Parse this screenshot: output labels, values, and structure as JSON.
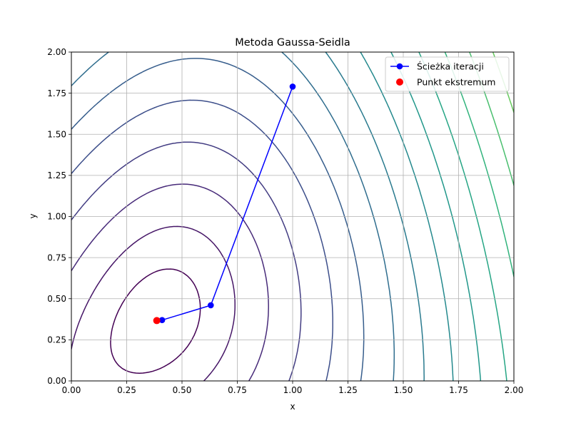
{
  "chart_data": {
    "type": "line",
    "title": "Metoda Gaussa-Seidla",
    "xlabel": "x",
    "ylabel": "y",
    "xlim": [
      0.0,
      2.0
    ],
    "ylim": [
      0.0,
      2.0
    ],
    "xticks": [
      "0.00",
      "0.25",
      "0.50",
      "0.75",
      "1.00",
      "1.25",
      "1.50",
      "1.75",
      "2.00"
    ],
    "yticks": [
      "0.00",
      "0.25",
      "0.50",
      "0.75",
      "1.00",
      "1.25",
      "1.50",
      "1.75",
      "2.00"
    ],
    "grid": true,
    "legend_position": "top-right",
    "contour": {
      "type": "contour",
      "colormap": "viridis",
      "center": [
        0.386,
        0.367
      ]
    },
    "series": [
      {
        "name": "Ścieżka iteracji",
        "type": "line",
        "marker": "circle",
        "color": "#0000ff",
        "points": [
          [
            1.0,
            1.79
          ],
          [
            0.63,
            0.46
          ],
          [
            0.41,
            0.37
          ]
        ]
      },
      {
        "name": "Punkt ekstremum",
        "type": "scatter",
        "marker": "circle",
        "color": "#ff0000",
        "points": [
          [
            0.386,
            0.367
          ]
        ]
      }
    ]
  }
}
